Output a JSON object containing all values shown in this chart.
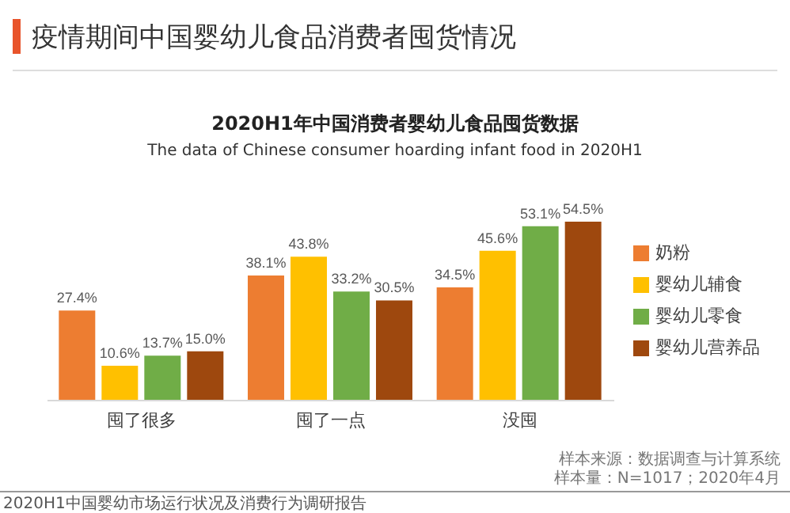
{
  "chart_data": {
    "type": "bar",
    "title": "2020H1年中国消费者婴幼儿食品囤货数据",
    "subtitle": "The data of Chinese consumer hoarding infant food in 2020H1",
    "categories": [
      "囤了很多",
      "囤了一点",
      "没囤"
    ],
    "series": [
      {
        "name": "奶粉",
        "color": "#ed7d31",
        "values": [
          27.4,
          38.1,
          34.5
        ],
        "value_labels": [
          "27.4%",
          "38.1%",
          "34.5%"
        ]
      },
      {
        "name": "婴幼儿辅食",
        "color": "#ffc000",
        "values": [
          10.6,
          43.8,
          45.6
        ],
        "value_labels": [
          "10.6%",
          "43.8%",
          "45.6%"
        ]
      },
      {
        "name": "婴幼儿零食",
        "color": "#70ad47",
        "values": [
          13.7,
          33.2,
          53.1
        ],
        "value_labels": [
          "13.7%",
          "33.2%",
          "53.1%"
        ]
      },
      {
        "name": "婴幼儿营养品",
        "color": "#9e480e",
        "values": [
          15.0,
          30.5,
          54.5
        ],
        "value_labels": [
          "15.0%",
          "30.5%",
          "54.5%"
        ]
      }
    ],
    "legend": "right",
    "grid": false,
    "annotations": [
      "疫情期间中国婴幼儿食品消费者囤货情况",
      "样本来源：数据调查与计算系统",
      "样本量：N=1017；2020年4月",
      "2020H1中国婴幼市场运行状况及消费行为调研报告"
    ]
  }
}
